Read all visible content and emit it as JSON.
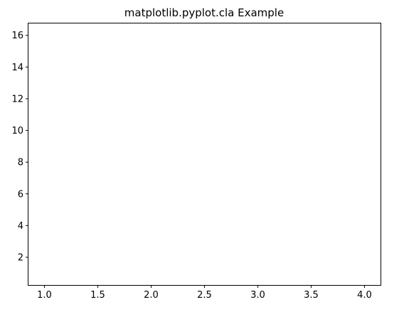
{
  "chart_data": {
    "type": "line",
    "title": "matplotlib.pyplot.cla Example",
    "xlabel": "",
    "ylabel": "",
    "xlim": [
      0.85,
      4.15
    ],
    "ylim": [
      0.25,
      16.75
    ],
    "xticks": [
      1.0,
      1.5,
      2.0,
      2.5,
      3.0,
      3.5,
      4.0
    ],
    "xtick_labels": [
      "1.0",
      "1.5",
      "2.0",
      "2.5",
      "3.0",
      "3.5",
      "4.0"
    ],
    "yticks": [
      2,
      4,
      6,
      8,
      10,
      12,
      14,
      16
    ],
    "ytick_labels": [
      "2",
      "4",
      "6",
      "8",
      "10",
      "12",
      "14",
      "16"
    ],
    "grid": false,
    "series": []
  }
}
